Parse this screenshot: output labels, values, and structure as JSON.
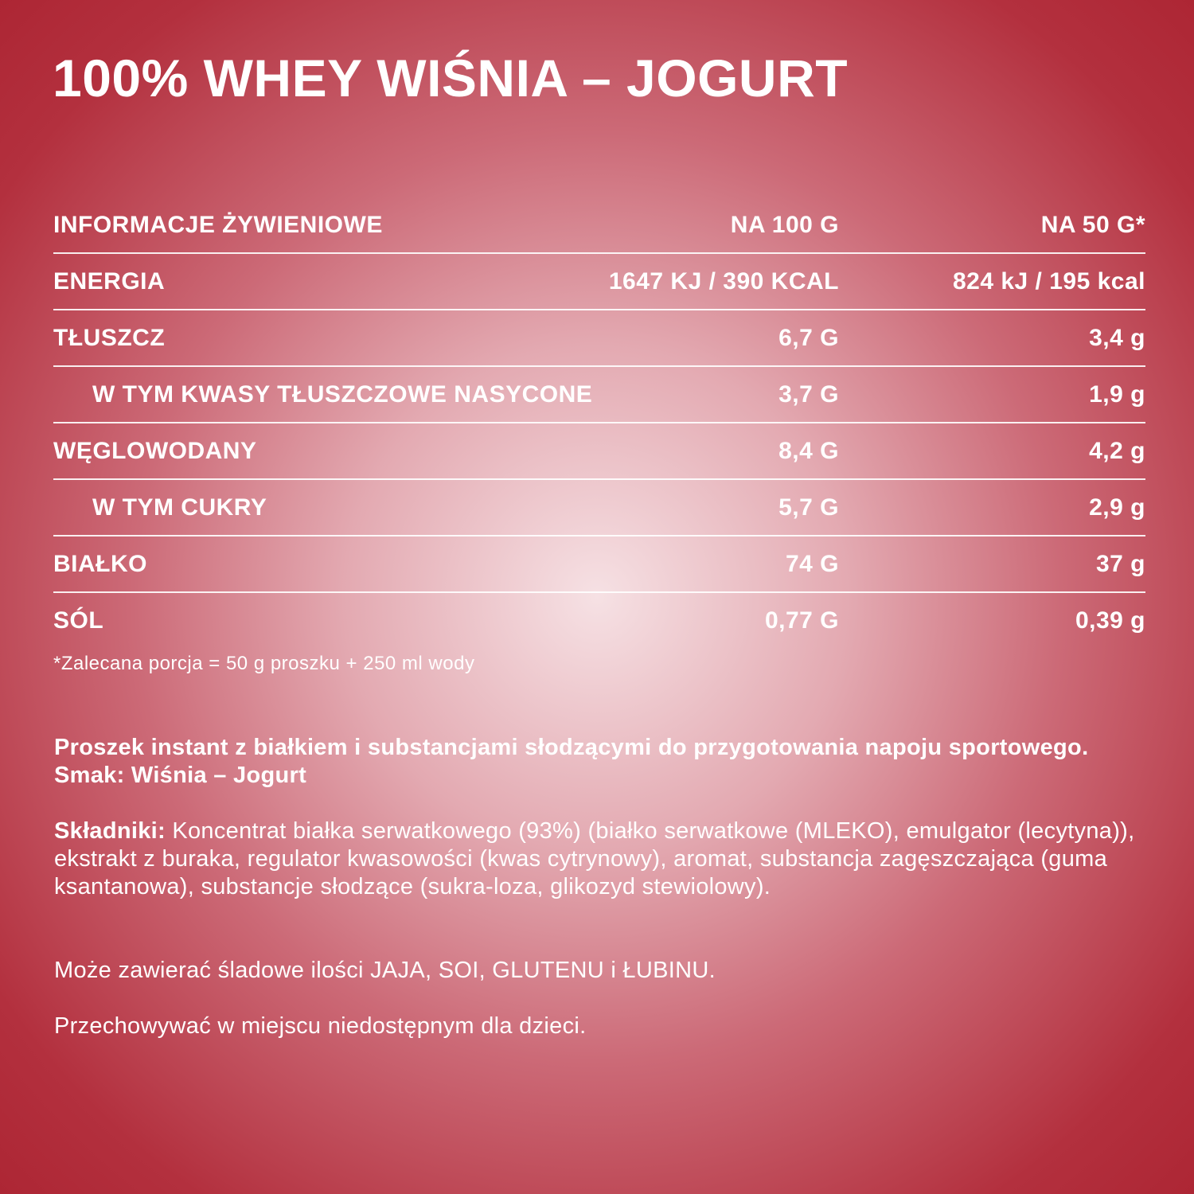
{
  "title": "100% WHEY WIŚNIA – JOGURT",
  "table": {
    "headers": [
      "INFORMACJE ŻYWIENIOWE",
      "NA 100 G",
      "NA 50 G*"
    ],
    "rows": [
      {
        "label": "ENERGIA",
        "per100": "1647 KJ / 390 KCAL",
        "per50": "824 kJ / 195 kcal",
        "indent": false
      },
      {
        "label": "TŁUSZCZ",
        "per100": "6,7 G",
        "per50": "3,4 g",
        "indent": false
      },
      {
        "label": "W TYM KWASY TŁUSZCZOWE NASYCONE",
        "per100": "3,7 G",
        "per50": "1,9 g",
        "indent": true
      },
      {
        "label": "WĘGLOWODANY",
        "per100": "8,4 G",
        "per50": "4,2 g",
        "indent": false
      },
      {
        "label": "W TYM CUKRY",
        "per100": "5,7 G",
        "per50": "2,9 g",
        "indent": true
      },
      {
        "label": "BIAŁKO",
        "per100": "74 G",
        "per50": "37 g",
        "indent": false
      },
      {
        "label": "SÓL",
        "per100": "0,77 G",
        "per50": "0,39 g",
        "indent": false
      }
    ]
  },
  "footnote": "*Zalecana porcja = 50 g proszku + 250 ml wody",
  "description": "Proszek instant z białkiem i substancjami słodzącymi do przygotowania napoju sportowego. Smak: Wiśnia – Jogurt",
  "ingredients_label": "Składniki:",
  "ingredients": " Koncentrat białka serwatkowego (93%) (białko serwatkowe (MLEKO), emulgator (lecytyna)), ekstrakt z buraka, regulator kwasowości (kwas cytrynowy), aromat, substancja zagęszczająca (guma ksantanowa), substancje słodzące (sukra-loza, glikozyd stewiolowy).",
  "allergens": "Może zawierać śladowe ilości JAJA, SOI, GLUTENU i ŁUBINU.",
  "storage": "Przechowywać w miejscu niedostępnym dla dzieci.",
  "colors": {
    "edge": "#ad2634",
    "center": "#f6e1e4",
    "text": "#ffffff"
  }
}
